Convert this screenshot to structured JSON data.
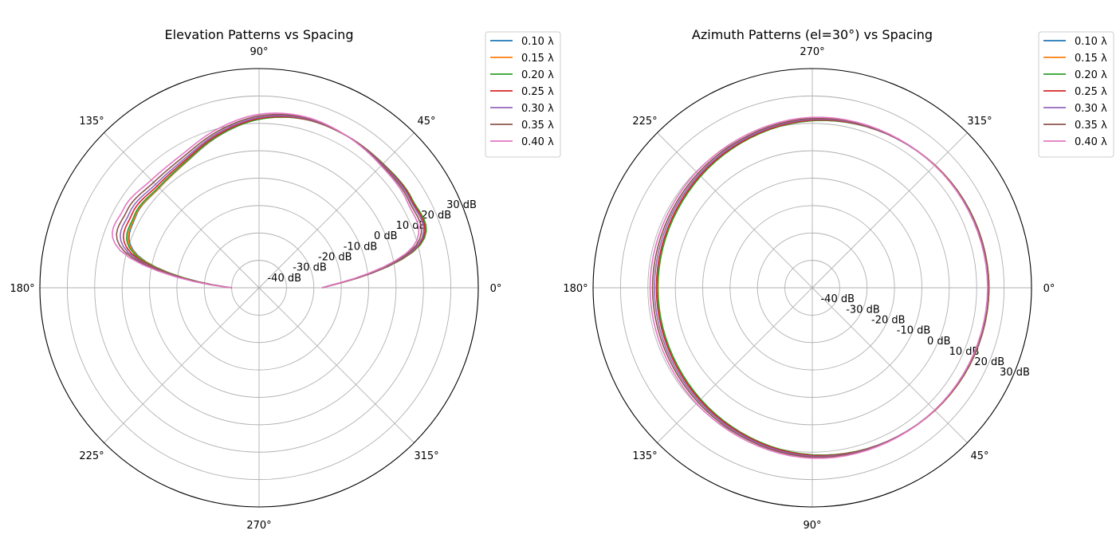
{
  "chart_data": [
    {
      "type": "line",
      "projection": "polar",
      "title": "Elevation Patterns vs Spacing",
      "theta_direction": "counterclockwise",
      "theta_zero": "east",
      "theta_ticks": [
        "0°",
        "45°",
        "90°",
        "135°",
        "180°",
        "225°",
        "270°",
        "315°"
      ],
      "r_ticks": [
        "-40 dB",
        "-30 dB",
        "-20 dB",
        "-10 dB",
        "0 dB",
        "10 dB",
        "20 dB",
        "30 dB"
      ],
      "rlim": [
        -50,
        30
      ],
      "grid": true,
      "legend": "upper-right-outside",
      "theta_range_deg": [
        0,
        180
      ],
      "theta_deg": [
        0,
        15,
        30,
        45,
        60,
        75,
        90,
        105,
        120,
        135,
        150,
        165,
        180
      ],
      "series": [
        {
          "name": "0.10 λ",
          "color": "#1f77b4",
          "values": [
            -27.0,
            11.0,
            14.5,
            14.0,
            14.0,
            13.7,
            11.5,
            7.3,
            3.0,
            1.5,
            2.0,
            -4.0,
            -40.0
          ]
        },
        {
          "name": "0.15 λ",
          "color": "#ff7f0e",
          "values": [
            -27.0,
            11.0,
            14.5,
            14.0,
            14.0,
            13.7,
            11.5,
            7.4,
            3.1,
            1.6,
            2.2,
            -3.6,
            -40.0
          ]
        },
        {
          "name": "0.20 λ",
          "color": "#2ca02c",
          "values": [
            -27.0,
            11.0,
            14.5,
            14.0,
            14.0,
            13.7,
            11.5,
            7.5,
            3.3,
            1.9,
            2.6,
            -3.0,
            -40.0
          ]
        },
        {
          "name": "0.25 λ",
          "color": "#d62728",
          "values": [
            -27.0,
            10.5,
            14.2,
            13.8,
            14.0,
            13.8,
            11.8,
            7.9,
            3.8,
            2.6,
            3.6,
            -1.8,
            -40.0
          ]
        },
        {
          "name": "0.30 λ",
          "color": "#9467bd",
          "values": [
            -27.0,
            10.0,
            13.8,
            13.6,
            14.0,
            14.0,
            12.2,
            8.4,
            4.4,
            3.4,
            4.6,
            -0.6,
            -40.0
          ]
        },
        {
          "name": "0.35 λ",
          "color": "#8c564b",
          "values": [
            -27.0,
            9.2,
            13.2,
            13.3,
            14.0,
            14.3,
            12.7,
            9.0,
            5.2,
            4.4,
            5.8,
            0.8,
            -40.0
          ]
        },
        {
          "name": "0.40 λ",
          "color": "#e377c2",
          "values": [
            -27.0,
            8.2,
            12.5,
            13.0,
            14.0,
            14.6,
            13.3,
            9.8,
            6.2,
            5.6,
            7.2,
            2.4,
            -40.0
          ]
        }
      ]
    },
    {
      "type": "line",
      "projection": "polar",
      "title": "Azimuth Patterns (el=30°) vs Spacing",
      "theta_direction": "clockwise",
      "theta_zero": "east",
      "theta_ticks": [
        "0°",
        "45°",
        "90°",
        "135°",
        "180°",
        "225°",
        "270°",
        "315°"
      ],
      "r_ticks": [
        "-40 dB",
        "-30 dB",
        "-20 dB",
        "-10 dB",
        "0 dB",
        "10 dB",
        "20 dB",
        "30 dB"
      ],
      "rlim": [
        -50,
        30
      ],
      "grid": true,
      "legend": "upper-right-outside",
      "theta_range_deg": [
        0,
        360
      ],
      "theta_deg": [
        0,
        30,
        60,
        90,
        120,
        150,
        180,
        210,
        240,
        270,
        300,
        330,
        360
      ],
      "series": [
        {
          "name": "0.10 λ",
          "color": "#1f77b4",
          "values": [
            14.5,
            13.9,
            12.6,
            11.0,
            8.7,
            7.0,
            6.4,
            7.0,
            8.7,
            11.0,
            12.6,
            13.9,
            14.5
          ]
        },
        {
          "name": "0.15 λ",
          "color": "#ff7f0e",
          "values": [
            14.5,
            13.9,
            12.6,
            11.0,
            8.6,
            6.9,
            6.3,
            6.9,
            8.6,
            11.0,
            12.6,
            13.9,
            14.5
          ]
        },
        {
          "name": "0.20 λ",
          "color": "#2ca02c",
          "values": [
            14.5,
            13.9,
            12.6,
            11.0,
            8.6,
            6.8,
            6.4,
            6.8,
            8.6,
            11.0,
            12.6,
            13.9,
            14.5
          ]
        },
        {
          "name": "0.25 λ",
          "color": "#d62728",
          "values": [
            14.4,
            13.8,
            12.6,
            11.2,
            8.9,
            7.3,
            6.9,
            7.3,
            8.9,
            11.2,
            12.6,
            13.8,
            14.4
          ]
        },
        {
          "name": "0.30 λ",
          "color": "#9467bd",
          "values": [
            14.3,
            13.7,
            12.6,
            11.5,
            9.3,
            7.9,
            7.6,
            7.9,
            9.3,
            11.5,
            12.6,
            13.7,
            14.3
          ]
        },
        {
          "name": "0.35 λ",
          "color": "#8c564b",
          "values": [
            14.2,
            13.6,
            12.7,
            11.8,
            9.8,
            8.5,
            8.3,
            8.5,
            9.8,
            11.8,
            12.7,
            13.6,
            14.2
          ]
        },
        {
          "name": "0.40 λ",
          "color": "#e377c2",
          "values": [
            14.0,
            13.5,
            12.8,
            12.2,
            10.4,
            9.3,
            9.2,
            9.3,
            10.4,
            12.2,
            12.8,
            13.5,
            14.0
          ]
        }
      ]
    }
  ]
}
